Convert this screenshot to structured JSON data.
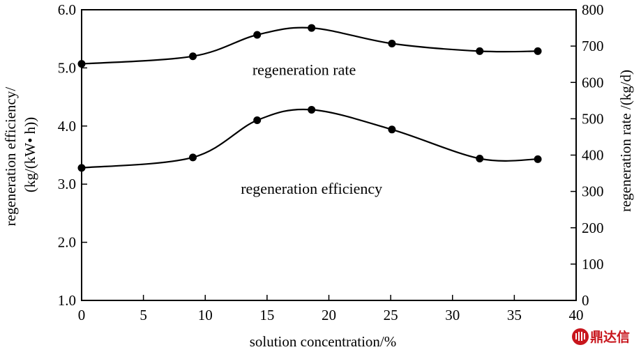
{
  "chart_data": {
    "type": "line",
    "xlabel": "solution concentration/%",
    "ylabel_left": [
      "regeneration efficiency/",
      "(kg/(kW• h))"
    ],
    "ylabel_right": "regeneration rate /(kg/d)",
    "xlim": [
      0,
      40
    ],
    "ylim_left": [
      1.0,
      6.0
    ],
    "ylim_right": [
      0,
      800
    ],
    "x_ticks": [
      0,
      5,
      10,
      15,
      20,
      25,
      30,
      35,
      40
    ],
    "y_left_ticks": [
      "1.0",
      "2.0",
      "3.0",
      "4.0",
      "5.0",
      "6.0"
    ],
    "y_right_ticks": [
      0,
      100,
      200,
      300,
      400,
      500,
      600,
      700,
      800
    ],
    "grid": false,
    "series": [
      {
        "name": "regeneration rate",
        "axis": "right",
        "x": [
          0,
          9,
          14.2,
          18.6,
          25.1,
          32.2,
          36.9
        ],
        "y": [
          651,
          672,
          731,
          750,
          707,
          686,
          686
        ]
      },
      {
        "name": "regeneration efficiency",
        "axis": "left",
        "x": [
          0,
          9,
          14.2,
          18.6,
          25.1,
          32.2,
          36.9
        ],
        "y": [
          3.28,
          3.46,
          4.1,
          4.28,
          3.94,
          3.44,
          3.43
        ]
      }
    ]
  },
  "watermark": {
    "text": "鼎达信",
    "color": "#c8161d",
    "icon": "logo-mark-icon"
  }
}
